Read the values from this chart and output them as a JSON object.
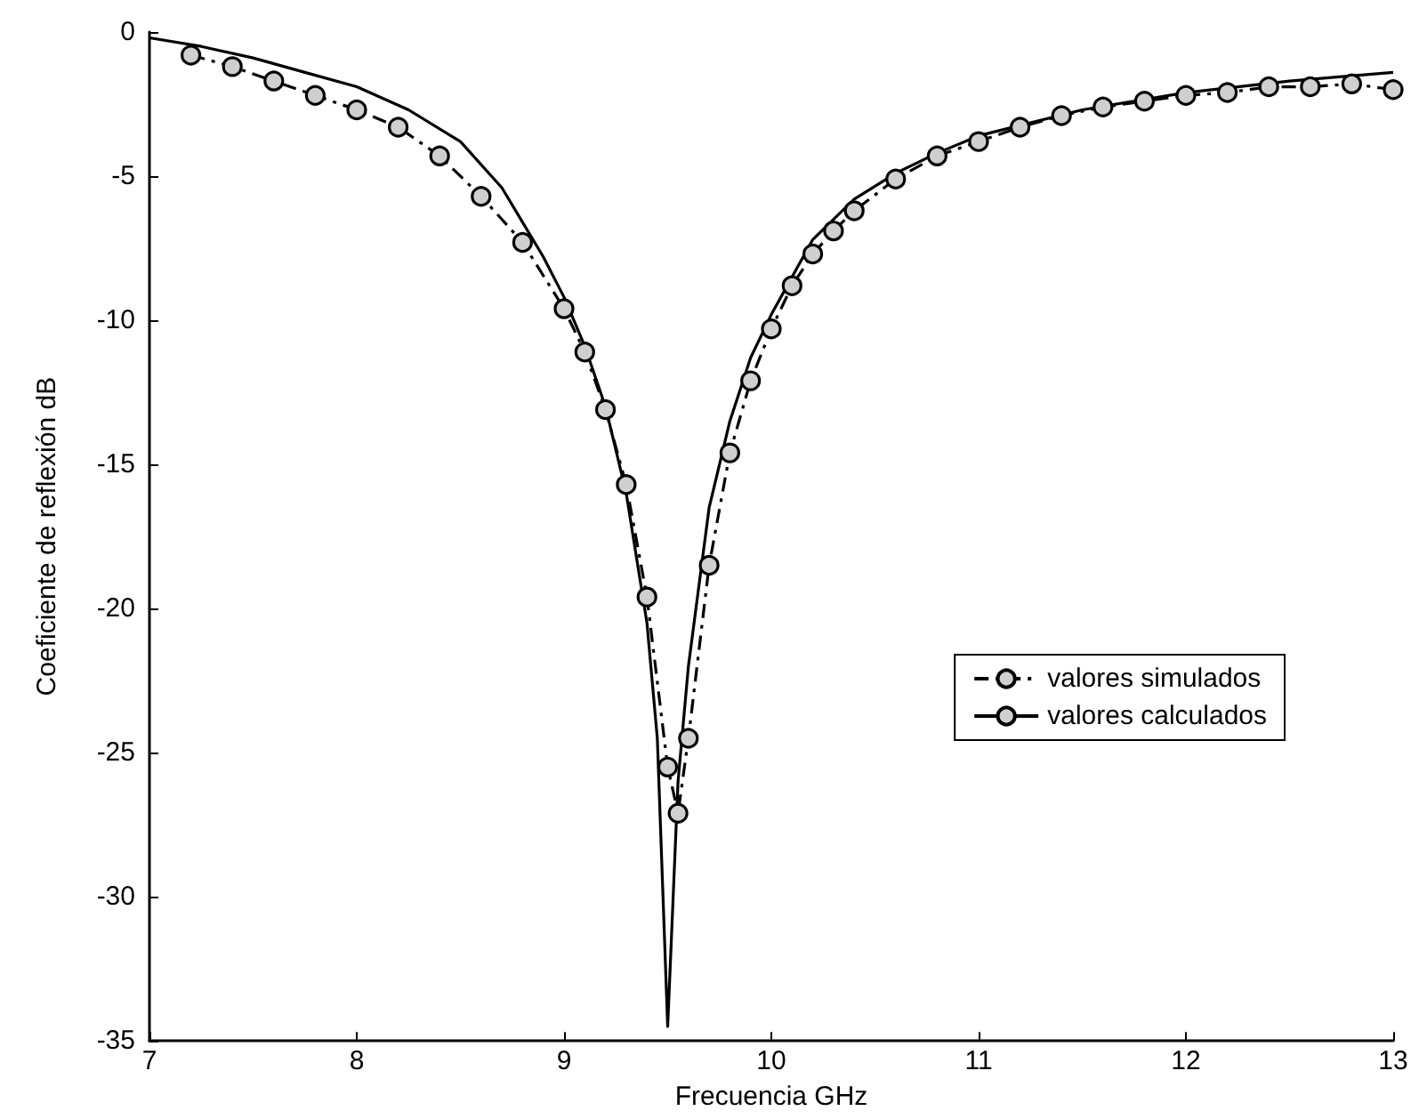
{
  "chart_data": {
    "type": "line",
    "xlabel": "Frecuencia GHz",
    "ylabel": "Coeficiente de reflexión dB",
    "xlim": [
      7,
      13
    ],
    "xticks": [
      7,
      8,
      9,
      10,
      11,
      12,
      13
    ],
    "ylim": [
      -35,
      0
    ],
    "yticks": [
      -35,
      -30,
      -25,
      -20,
      -15,
      -10,
      -5,
      0
    ],
    "grid": false,
    "legend": "right",
    "series": [
      {
        "name": "valores simulados",
        "color": "#000000",
        "marker": "circle",
        "line_style": "dashdot",
        "x": [
          7.2,
          7.4,
          7.6,
          7.8,
          8.0,
          8.2,
          8.4,
          8.6,
          8.8,
          9.0,
          9.1,
          9.2,
          9.3,
          9.4,
          9.5,
          9.55,
          9.6,
          9.7,
          9.8,
          9.9,
          10.0,
          10.1,
          10.2,
          10.3,
          10.4,
          10.6,
          10.8,
          11.0,
          11.2,
          11.4,
          11.6,
          11.8,
          12.0,
          12.2,
          12.4,
          12.6,
          12.8,
          13.0
        ],
        "values": [
          -0.8,
          -1.2,
          -1.7,
          -2.2,
          -2.7,
          -3.3,
          -4.3,
          -5.7,
          -7.3,
          -9.6,
          -11.1,
          -13.1,
          -15.7,
          -19.6,
          -25.5,
          -27.1,
          -24.5,
          -18.5,
          -14.6,
          -12.1,
          -10.3,
          -8.8,
          -7.7,
          -6.9,
          -6.2,
          -5.1,
          -4.3,
          -3.8,
          -3.3,
          -2.9,
          -2.6,
          -2.4,
          -2.2,
          -2.1,
          -1.9,
          -1.9,
          -1.8,
          -2.0
        ]
      },
      {
        "name": "valores calculados",
        "color": "#000000",
        "marker": "none",
        "line_style": "solid",
        "x": [
          7.0,
          7.25,
          7.5,
          7.75,
          8.0,
          8.25,
          8.5,
          8.7,
          8.8,
          8.9,
          9.0,
          9.1,
          9.2,
          9.3,
          9.4,
          9.45,
          9.5,
          9.55,
          9.6,
          9.7,
          9.8,
          9.9,
          10.0,
          10.2,
          10.4,
          10.6,
          10.8,
          11.0,
          11.5,
          12.0,
          12.5,
          13.0
        ],
        "values": [
          -0.2,
          -0.5,
          -0.9,
          -1.4,
          -1.9,
          -2.7,
          -3.8,
          -5.4,
          -6.6,
          -7.8,
          -9.2,
          -10.9,
          -13.0,
          -16.0,
          -20.5,
          -24.5,
          -34.5,
          -26.0,
          -22.0,
          -16.5,
          -13.5,
          -11.3,
          -9.8,
          -7.2,
          -5.8,
          -4.9,
          -4.2,
          -3.6,
          -2.7,
          -2.1,
          -1.7,
          -1.4
        ]
      }
    ]
  }
}
